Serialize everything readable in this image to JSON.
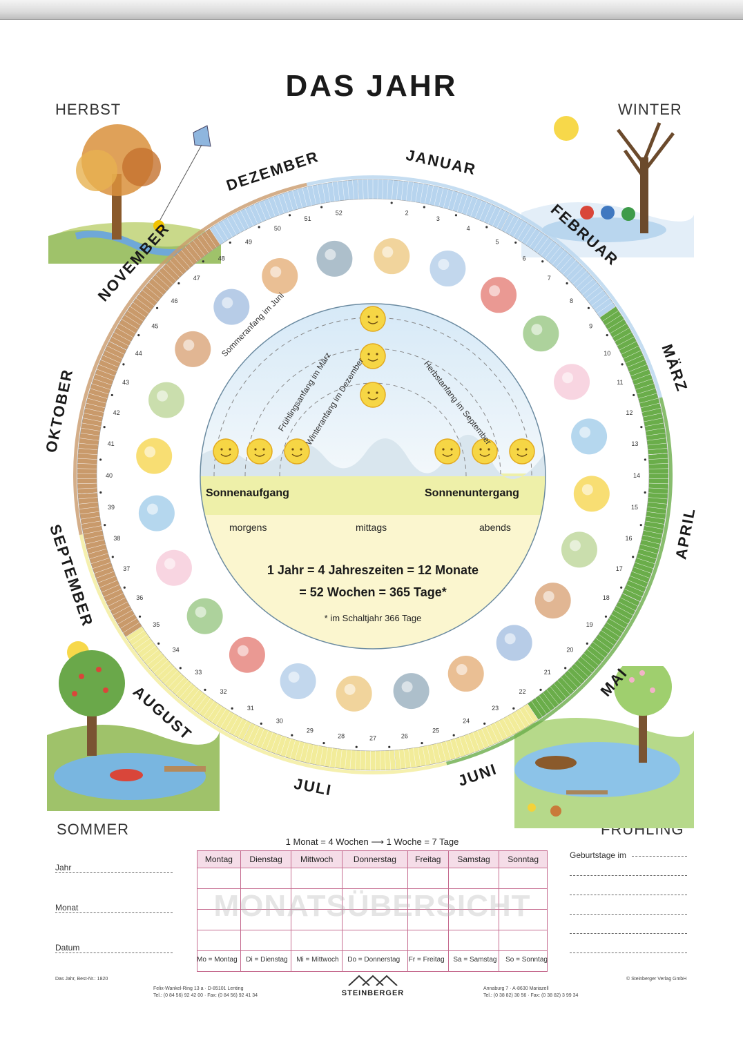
{
  "title": "DAS JAHR",
  "seasons": {
    "herbst": "HERBST",
    "winter": "WINTER",
    "sommer": "SOMMER",
    "fruehling": "FRÜHLING"
  },
  "months": [
    {
      "name": "JANUAR",
      "start_day": 0,
      "days": 31,
      "color": "#b7d4ee"
    },
    {
      "name": "FEBRUAR",
      "start_day": 31,
      "days": 28,
      "color": "#b7d4ee"
    },
    {
      "name": "MÄRZ",
      "start_day": 59,
      "days": 31,
      "color": "#6aad4a"
    },
    {
      "name": "APRIL",
      "start_day": 90,
      "days": 30,
      "color": "#6aad4a"
    },
    {
      "name": "MAI",
      "start_day": 120,
      "days": 31,
      "color": "#6aad4a"
    },
    {
      "name": "JUNI",
      "start_day": 151,
      "days": 30,
      "color": "#f2ec9a"
    },
    {
      "name": "JULI",
      "start_day": 181,
      "days": 31,
      "color": "#f2ec9a"
    },
    {
      "name": "AUGUST",
      "start_day": 212,
      "days": 31,
      "color": "#f2ec9a"
    },
    {
      "name": "SEPTEMBER",
      "start_day": 243,
      "days": 30,
      "color": "#c99a6b"
    },
    {
      "name": "OKTOBER",
      "start_day": 273,
      "days": 31,
      "color": "#c99a6b"
    },
    {
      "name": "NOVEMBER",
      "start_day": 304,
      "days": 30,
      "color": "#c99a6b"
    },
    {
      "name": "DEZEMBER",
      "start_day": 334,
      "days": 31,
      "color": "#b7d4ee"
    }
  ],
  "season_arcs": [
    {
      "name": "winter",
      "start_day": 355,
      "end_day": 444,
      "color": "#b7d4ee"
    },
    {
      "name": "fruehling",
      "start_day": 79,
      "end_day": 171,
      "color": "#6aad4a"
    },
    {
      "name": "sommer",
      "start_day": 171,
      "end_day": 265,
      "color": "#f2ec9a"
    },
    {
      "name": "herbst",
      "start_day": 265,
      "end_day": 355,
      "color": "#c99a6b"
    }
  ],
  "week_numbers": [
    "2",
    "3",
    "4",
    "5",
    "6",
    "7",
    "8",
    "9",
    "10",
    "11",
    "12",
    "13",
    "14",
    "15",
    "16",
    "17",
    "18",
    "19",
    "20",
    "21",
    "22",
    "23",
    "24",
    "25",
    "26",
    "27",
    "28",
    "29",
    "30",
    "31",
    "32",
    "33",
    "34",
    "35",
    "36",
    "37",
    "38",
    "39",
    "40",
    "41",
    "42",
    "43",
    "44",
    "45",
    "46",
    "47",
    "48",
    "49",
    "50",
    "51",
    "52"
  ],
  "sun_diagram": {
    "arc_labels": [
      "Sommeranfang im Juni",
      "Frühlingsanfang im März",
      "Winteranfang im Dezember",
      "Herbstanfang im September"
    ],
    "sunrise": "Sonnenaufgang",
    "sunset": "Sonnenuntergang",
    "times": [
      "morgens",
      "mittags",
      "abends"
    ],
    "equation_line1": "1 Jahr = 4 Jahreszeiten = 12 Monate",
    "equation_line2": "= 52 Wochen = 365 Tage*",
    "footnote": "* im Schaltjahr 366 Tage"
  },
  "form": {
    "jahr": "Jahr",
    "monat": "Monat",
    "datum": "Datum"
  },
  "calendar": {
    "caption_left": "1 Monat = 4 Wochen",
    "caption_right": "1 Woche = 7 Tage",
    "days": [
      "Montag",
      "Dienstag",
      "Mittwoch",
      "Donnerstag",
      "Freitag",
      "Samstag",
      "Sonntag"
    ],
    "rows": 5,
    "watermark": "MONATSÜBERSICHT",
    "abbreviations": [
      "Mo = Montag",
      "Di = Dienstag",
      "Mi = Mittwoch",
      "Do = Donnerstag",
      "Fr = Freitag",
      "Sa = Samstag",
      "So = Sonntag"
    ]
  },
  "birthdays": {
    "label": "Geburtstage im"
  },
  "footer": {
    "product": "Das Jahr, Best-Nr.: 1820",
    "address_de_1": "Felix-Wankel-Ring 13 a  ·  D-85101 Lenting",
    "address_de_2": "Tel.: (0 84 56) 92 42 00  ·  Fax: (0 84 56) 92 41 34",
    "publisher": "STEINBERGER",
    "address_at_1": "Annaburg 7  ·  A-8630 Mariazell",
    "address_at_2": "Tel.: (0 38 82) 30 56  ·  Fax: (0 38 82) 3 99 34",
    "copyright": "© Steinberger Verlag GmbH"
  }
}
